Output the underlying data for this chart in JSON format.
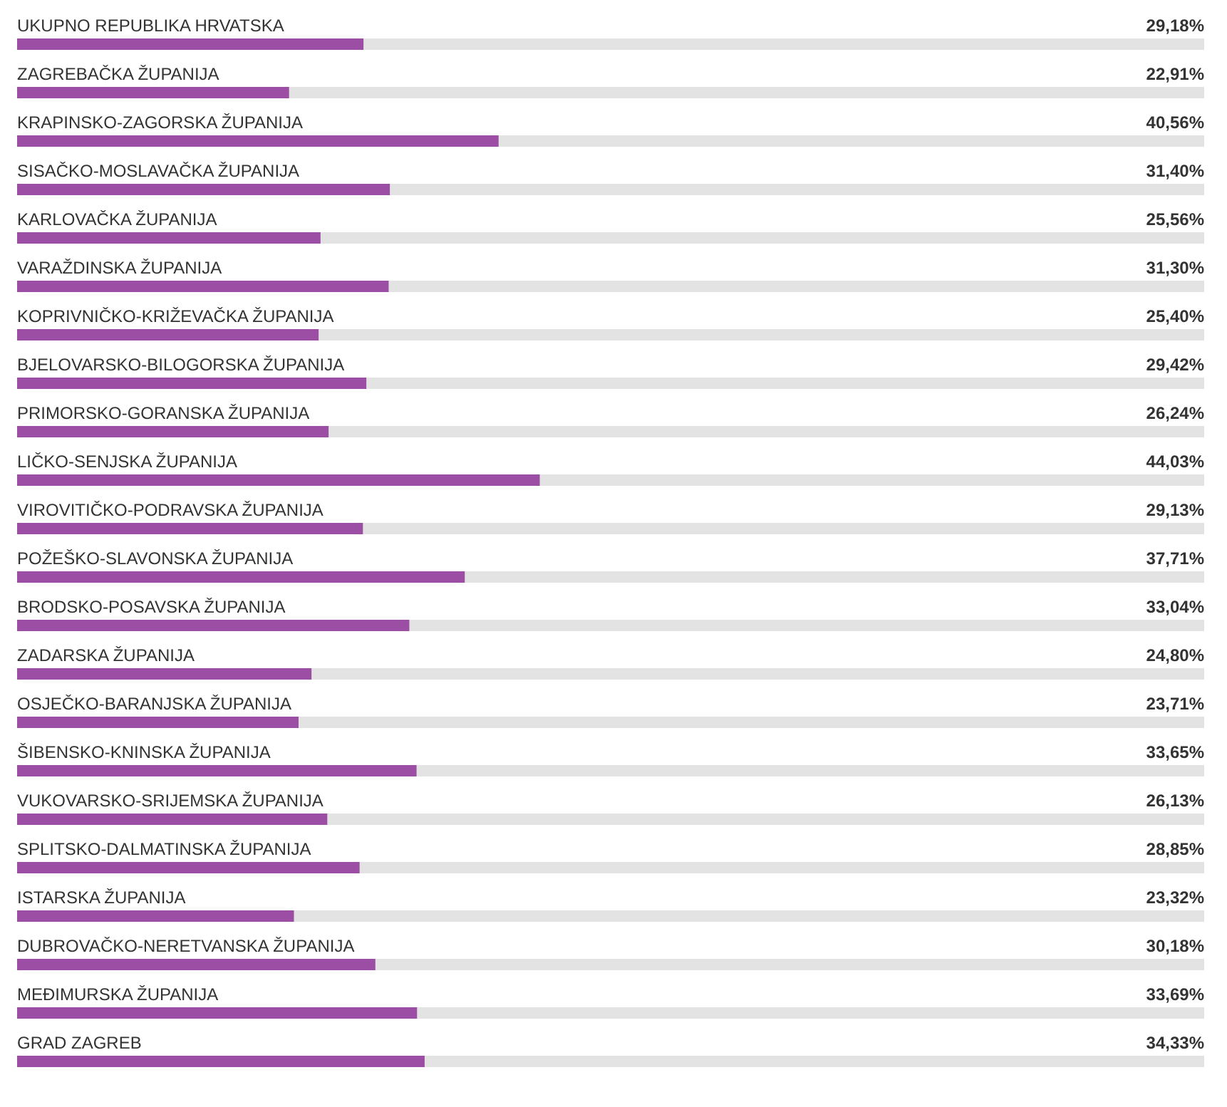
{
  "chart_data": {
    "type": "bar",
    "orientation": "horizontal",
    "color": "#9b4ea3",
    "xlim": [
      0,
      100
    ],
    "tick_labels": false,
    "value_labels": [
      "29,18%",
      "22,91%",
      "40,56%",
      "31,40%",
      "25,56%",
      "31,30%",
      "25,40%",
      "29,42%",
      "26,24%",
      "44,03%",
      "29,13%",
      "37,71%",
      "33,04%",
      "24,80%",
      "23,71%",
      "33,65%",
      "26,13%",
      "28,85%",
      "23,32%",
      "30,18%",
      "33,69%",
      "34,33%"
    ],
    "categories": [
      "UKUPNO REPUBLIKA HRVATSKA",
      "ZAGREBAČKA ŽUPANIJA",
      "KRAPINSKO-ZAGORSKA ŽUPANIJA",
      "SISAČKO-MOSLAVAČKA ŽUPANIJA",
      "KARLOVAČKA ŽUPANIJA",
      "VARAŽDINSKA ŽUPANIJA",
      "KOPRIVNIČKO-KRIŽEVAČKA ŽUPANIJA",
      "BJELOVARSKO-BILOGORSKA ŽUPANIJA",
      "PRIMORSKO-GORANSKA ŽUPANIJA",
      "LIČKO-SENJSKA ŽUPANIJA",
      "VIROVITIČKO-PODRAVSKA ŽUPANIJA",
      "POŽEŠKO-SLAVONSKA ŽUPANIJA",
      "BRODSKO-POSAVSKA ŽUPANIJA",
      "ZADARSKA ŽUPANIJA",
      "OSJEČKO-BARANJSKA ŽUPANIJA",
      "ŠIBENSKO-KNINSKA ŽUPANIJA",
      "VUKOVARSKO-SRIJEMSKA ŽUPANIJA",
      "SPLITSKO-DALMATINSKA ŽUPANIJA",
      "ISTARSKA ŽUPANIJA",
      "DUBROVAČKO-NERETVANSKA ŽUPANIJA",
      "MEĐIMURSKA ŽUPANIJA",
      "GRAD ZAGREB"
    ],
    "values": [
      29.18,
      22.91,
      40.56,
      31.4,
      25.56,
      31.3,
      25.4,
      29.42,
      26.24,
      44.03,
      29.13,
      37.71,
      33.04,
      24.8,
      23.71,
      33.65,
      26.13,
      28.85,
      23.32,
      30.18,
      33.69,
      34.33
    ]
  }
}
